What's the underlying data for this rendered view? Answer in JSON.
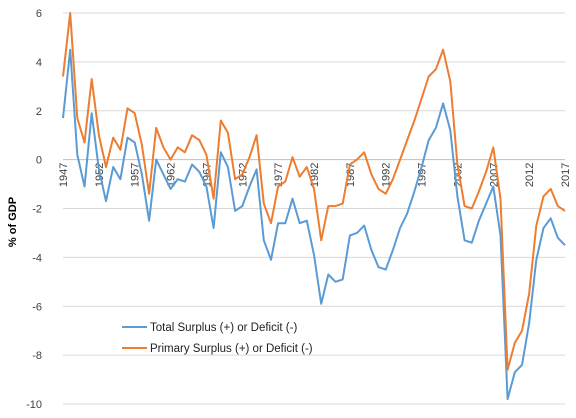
{
  "chart_data": {
    "type": "line",
    "title": "",
    "xlabel": "",
    "ylabel": "% of GDP",
    "ylim": [
      -10,
      6
    ],
    "xlim": [
      1947,
      2017
    ],
    "yticks": [
      6,
      4,
      2,
      0,
      -2,
      -4,
      -6,
      -8,
      -10
    ],
    "xtick_labels": [
      "1947",
      "1952",
      "1957",
      "1962",
      "1967",
      "1972",
      "1977",
      "1982",
      "1987",
      "1992",
      "1997",
      "2002",
      "2007",
      "2012",
      "2017"
    ],
    "grid": "horizontal",
    "legend_position": "bottom-left",
    "x": [
      1947,
      1948,
      1949,
      1950,
      1951,
      1952,
      1953,
      1954,
      1955,
      1956,
      1957,
      1958,
      1959,
      1960,
      1961,
      1962,
      1963,
      1964,
      1965,
      1966,
      1967,
      1968,
      1969,
      1970,
      1971,
      1972,
      1973,
      1974,
      1975,
      1976,
      1977,
      1978,
      1979,
      1980,
      1981,
      1982,
      1983,
      1984,
      1985,
      1986,
      1987,
      1988,
      1989,
      1990,
      1991,
      1992,
      1993,
      1994,
      1995,
      1996,
      1997,
      1998,
      1999,
      2000,
      2001,
      2002,
      2003,
      2004,
      2005,
      2006,
      2007,
      2008,
      2009,
      2010,
      2011,
      2012,
      2013,
      2014,
      2015,
      2016,
      2017
    ],
    "series": [
      {
        "name": "Total Surplus (+) or Deficit (-)",
        "color": "#5b9bd5",
        "values": [
          1.7,
          4.5,
          0.2,
          -1.1,
          1.9,
          -0.4,
          -1.7,
          -0.3,
          -0.8,
          0.9,
          0.7,
          -0.6,
          -2.5,
          0.0,
          -0.6,
          -1.2,
          -0.8,
          -0.9,
          -0.2,
          -0.5,
          -1.1,
          -2.8,
          0.3,
          -0.3,
          -2.1,
          -1.9,
          -1.1,
          -0.4,
          -3.3,
          -4.1,
          -2.6,
          -2.6,
          -1.6,
          -2.6,
          -2.5,
          -3.9,
          -5.9,
          -4.7,
          -5.0,
          -4.9,
          -3.1,
          -3.0,
          -2.7,
          -3.7,
          -4.4,
          -4.5,
          -3.7,
          -2.8,
          -2.2,
          -1.3,
          -0.3,
          0.8,
          1.3,
          2.3,
          1.2,
          -1.5,
          -3.3,
          -3.4,
          -2.5,
          -1.8,
          -1.1,
          -3.1,
          -9.8,
          -8.7,
          -8.4,
          -6.7,
          -4.1,
          -2.8,
          -2.4,
          -3.2,
          -3.5
        ]
      },
      {
        "name": "Primary Surplus (+) or Deficit (-)",
        "color": "#ed7d31",
        "values": [
          3.4,
          6.0,
          1.7,
          0.7,
          3.3,
          1.0,
          -0.3,
          0.9,
          0.4,
          2.1,
          1.9,
          0.6,
          -1.4,
          1.3,
          0.5,
          0.0,
          0.5,
          0.3,
          1.0,
          0.8,
          0.2,
          -1.6,
          1.6,
          1.1,
          -0.8,
          -0.6,
          0.1,
          1.0,
          -1.8,
          -2.6,
          -1.1,
          -0.9,
          0.1,
          -0.7,
          -0.3,
          -1.2,
          -3.3,
          -1.9,
          -1.9,
          -1.8,
          -0.2,
          0.0,
          0.3,
          -0.6,
          -1.2,
          -1.4,
          -0.8,
          0.0,
          0.8,
          1.6,
          2.5,
          3.4,
          3.7,
          4.5,
          3.2,
          -0.2,
          -1.9,
          -2.0,
          -1.3,
          -0.5,
          0.5,
          -1.6,
          -8.6,
          -7.5,
          -7.0,
          -5.5,
          -2.7,
          -1.5,
          -1.2,
          -1.9,
          -2.1
        ]
      }
    ]
  }
}
